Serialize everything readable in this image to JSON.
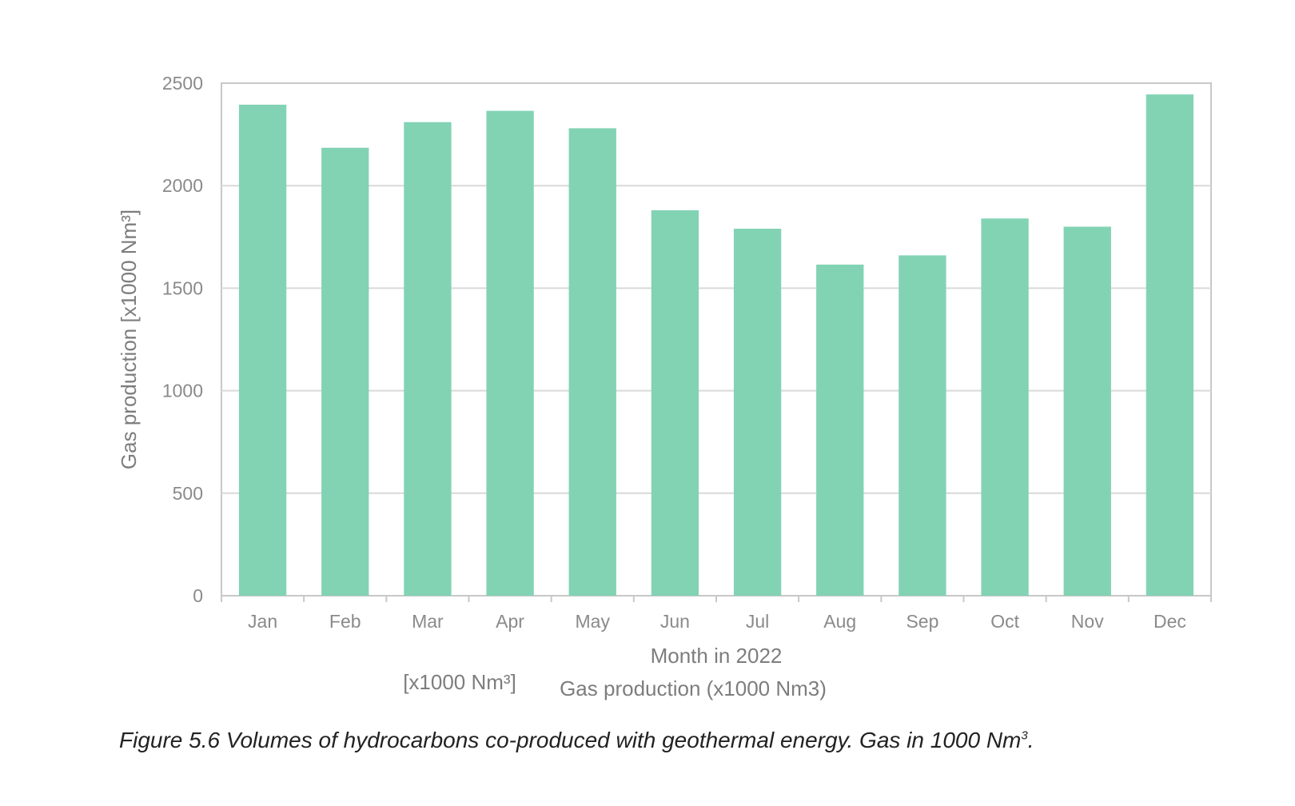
{
  "chart_data": {
    "type": "bar",
    "categories": [
      "Jan",
      "Feb",
      "Mar",
      "Apr",
      "May",
      "Jun",
      "Jul",
      "Aug",
      "Sep",
      "Oct",
      "Nov",
      "Dec"
    ],
    "values": [
      2395,
      2185,
      2310,
      2365,
      2280,
      1880,
      1790,
      1615,
      1660,
      1840,
      1800,
      2445
    ],
    "ylim": [
      0,
      2500
    ],
    "yticks": [
      "0",
      "500",
      "1000",
      "1500",
      "2000",
      "2500"
    ],
    "ylabel": "Gas production [x1000 Nm³]",
    "xlabel": "Month in 2022",
    "legend_unit": "[x1000 Nm³]",
    "legend_series": "Gas production (x1000 Nm3)",
    "grid": true,
    "bar_color": "#82d3b4",
    "grid_color": "#d9d9d9",
    "axis_color": "#c8c8c8",
    "text_color": "#8a8a8a"
  },
  "caption": {
    "text": "Figure 5.6 Volumes of hydrocarbons co-produced with geothermal energy. Gas in 1000 Nm",
    "sup": "3",
    "end": "."
  }
}
